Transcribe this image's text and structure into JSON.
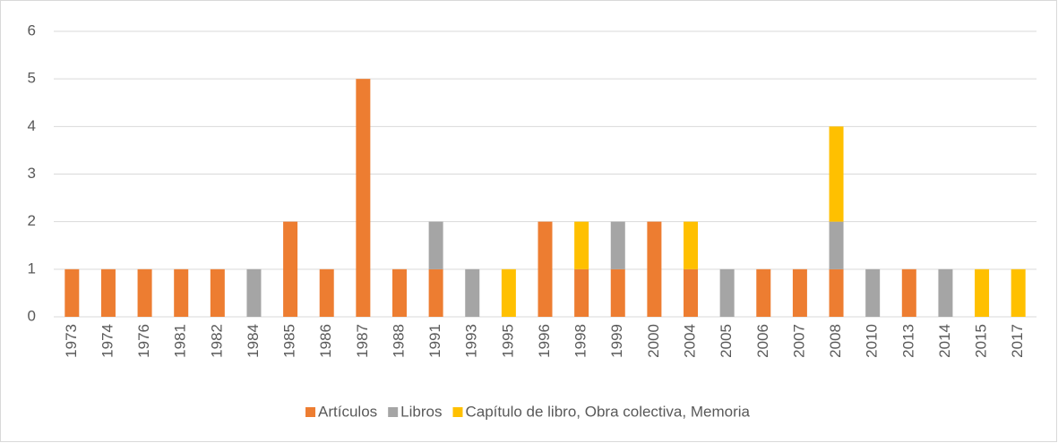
{
  "chart_data": {
    "type": "stacked_bar",
    "categories": [
      "1973",
      "1974",
      "1976",
      "1981",
      "1982",
      "1984",
      "1985",
      "1986",
      "1987",
      "1988",
      "1991",
      "1993",
      "1995",
      "1996",
      "1998",
      "1999",
      "2000",
      "2004",
      "2005",
      "2006",
      "2007",
      "2008",
      "2010",
      "2013",
      "2014",
      "2015",
      "2017"
    ],
    "series": [
      {
        "name": "Artículos",
        "color": "#ed7d31",
        "values": [
          1,
          1,
          1,
          1,
          1,
          0,
          2,
          1,
          5,
          1,
          1,
          0,
          0,
          2,
          1,
          1,
          2,
          1,
          0,
          1,
          1,
          1,
          0,
          1,
          0,
          0,
          0
        ]
      },
      {
        "name": "Libros",
        "color": "#a5a5a5",
        "values": [
          0,
          0,
          0,
          0,
          0,
          1,
          0,
          0,
          0,
          0,
          1,
          1,
          0,
          0,
          0,
          1,
          0,
          0,
          1,
          0,
          0,
          1,
          1,
          0,
          1,
          0,
          0
        ]
      },
      {
        "name": "Capítulo de libro, Obra colectiva, Memoria",
        "color": "#ffc000",
        "values": [
          0,
          0,
          0,
          0,
          0,
          0,
          0,
          0,
          0,
          0,
          0,
          0,
          1,
          0,
          1,
          0,
          0,
          1,
          0,
          0,
          0,
          2,
          0,
          0,
          0,
          1,
          1
        ]
      }
    ],
    "ylim": [
      0,
      6
    ],
    "yticks": [
      0,
      1,
      2,
      3,
      4,
      5,
      6
    ],
    "grid": true,
    "legend": "bottom"
  }
}
